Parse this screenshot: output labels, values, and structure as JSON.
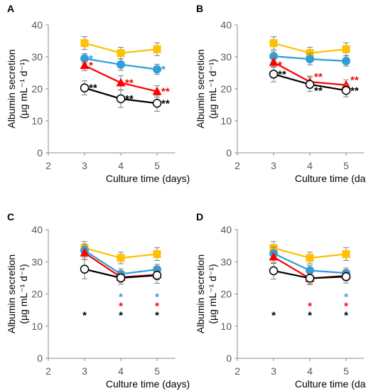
{
  "chart_data": [
    {
      "panel_label": "A",
      "type": "line",
      "xlabel": "Culture time (days)",
      "ylabel_line1": "Albumin secretion",
      "ylabel_line2": "(µg mL⁻¹ d⁻¹)",
      "x": [
        3,
        4,
        5
      ],
      "xlim": [
        2,
        5.5
      ],
      "xticks": [
        "2",
        "3",
        "4",
        "5"
      ],
      "ylim": [
        0,
        40
      ],
      "yticks": [
        "0",
        "10",
        "20",
        "30",
        "40"
      ],
      "grid": false,
      "series": [
        {
          "color": "#FFC000",
          "marker": "square",
          "values": [
            34.3,
            31.2,
            32.4
          ],
          "errors": [
            2.0,
            1.8,
            2.0
          ]
        },
        {
          "color": "#2E9FD9",
          "marker": "circle",
          "values": [
            29.5,
            27.6,
            26.1
          ],
          "errors": [
            1.5,
            1.8,
            1.6
          ]
        },
        {
          "color": "#FF0000",
          "marker": "triangle",
          "values": [
            27.3,
            21.9,
            19.2
          ],
          "errors": [
            1.6,
            2.2,
            1.8
          ]
        },
        {
          "color": "#000000",
          "marker": "open-circle",
          "values": [
            20.3,
            16.9,
            15.5
          ],
          "errors": [
            2.2,
            2.7,
            2.5
          ]
        }
      ],
      "annotations": [
        {
          "text": "*",
          "color": "#2E9FD9",
          "x": 3,
          "y": 29.5,
          "pos": "right"
        },
        {
          "text": "*",
          "color": "#FF0000",
          "x": 3,
          "y": 27.3,
          "pos": "right"
        },
        {
          "text": "**",
          "color": "#000000",
          "x": 3,
          "y": 20.3,
          "pos": "right"
        },
        {
          "text": "**",
          "color": "#FF0000",
          "x": 4,
          "y": 21.9,
          "pos": "right"
        },
        {
          "text": "**",
          "color": "#000000",
          "x": 4,
          "y": 16.9,
          "pos": "right"
        },
        {
          "text": "*",
          "color": "#2E9FD9",
          "x": 5,
          "y": 26.1,
          "pos": "right"
        },
        {
          "text": "**",
          "color": "#FF0000",
          "x": 5,
          "y": 19.2,
          "pos": "right"
        },
        {
          "text": "**",
          "color": "#000000",
          "x": 5,
          "y": 15.5,
          "pos": "right"
        }
      ]
    },
    {
      "panel_label": "B",
      "type": "line",
      "xlabel": "Culture time (days)",
      "ylabel_line1": "Albumin secretion",
      "ylabel_line2": "(µg mL⁻¹ d⁻¹)",
      "x": [
        3,
        4,
        5
      ],
      "xlim": [
        2,
        5.5
      ],
      "xticks": [
        "2",
        "3",
        "4",
        "5"
      ],
      "ylim": [
        0,
        40
      ],
      "yticks": [
        "0",
        "10",
        "20",
        "30",
        "40"
      ],
      "grid": false,
      "series": [
        {
          "color": "#FFC000",
          "marker": "square",
          "values": [
            34.3,
            31.2,
            32.4
          ],
          "errors": [
            2.0,
            1.8,
            2.0
          ]
        },
        {
          "color": "#2E9FD9",
          "marker": "circle",
          "values": [
            30.2,
            29.3,
            28.7
          ],
          "errors": [
            1.6,
            1.8,
            1.6
          ]
        },
        {
          "color": "#FF0000",
          "marker": "triangle",
          "values": [
            28.3,
            22.2,
            21.2
          ],
          "errors": [
            1.6,
            1.8,
            1.6
          ]
        },
        {
          "color": "#000000",
          "marker": "open-circle",
          "values": [
            24.6,
            21.4,
            19.5
          ],
          "errors": [
            2.4,
            2.2,
            2.0
          ]
        }
      ],
      "annotations": [
        {
          "text": "*",
          "color": "#FF0000",
          "x": 3,
          "y": 28.3,
          "pos": "right-low"
        },
        {
          "text": "**",
          "color": "#000000",
          "x": 3,
          "y": 24.6,
          "pos": "right"
        },
        {
          "text": "**",
          "color": "#FF0000",
          "x": 4,
          "y": 23.8,
          "pos": "right"
        },
        {
          "text": "**",
          "color": "#000000",
          "x": 4,
          "y": 19.4,
          "pos": "right"
        },
        {
          "text": "**",
          "color": "#FF0000",
          "x": 5,
          "y": 22.8,
          "pos": "right"
        },
        {
          "text": "**",
          "color": "#000000",
          "x": 5,
          "y": 19.5,
          "pos": "right"
        }
      ]
    },
    {
      "panel_label": "C",
      "type": "line",
      "xlabel": "Culture time (days)",
      "ylabel_line1": "Albumin secretion",
      "ylabel_line2": "(µg mL⁻¹ d⁻¹)",
      "x": [
        3,
        4,
        5
      ],
      "xlim": [
        2,
        5.5
      ],
      "xticks": [
        "2",
        "3",
        "4",
        "5"
      ],
      "ylim": [
        0,
        40
      ],
      "yticks": [
        "0",
        "10",
        "20",
        "30",
        "40"
      ],
      "grid": false,
      "series": [
        {
          "color": "#FFC000",
          "marker": "square",
          "values": [
            34.3,
            31.2,
            32.4
          ],
          "errors": [
            2.0,
            1.8,
            2.0
          ]
        },
        {
          "color": "#2E9FD9",
          "marker": "circle",
          "values": [
            33.5,
            26.2,
            27.6
          ],
          "errors": [
            2.0,
            1.6,
            1.6
          ]
        },
        {
          "color": "#FF0000",
          "marker": "triangle",
          "values": [
            32.8,
            25.2,
            26.0
          ],
          "errors": [
            2.0,
            1.6,
            1.6
          ]
        },
        {
          "color": "#000000",
          "marker": "open-circle",
          "values": [
            27.7,
            25.0,
            25.8
          ],
          "errors": [
            3.0,
            2.0,
            2.5
          ]
        }
      ],
      "annotations": [
        {
          "text": "*",
          "color": "#000000",
          "x": 3,
          "y": 14.5,
          "pos": "below"
        },
        {
          "text": "*",
          "color": "#2E9FD9",
          "x": 4,
          "y": 20.2,
          "pos": "below"
        },
        {
          "text": "*",
          "color": "#FF0000",
          "x": 4,
          "y": 17.4,
          "pos": "below"
        },
        {
          "text": "*",
          "color": "#000000",
          "x": 4,
          "y": 14.5,
          "pos": "below"
        },
        {
          "text": "*",
          "color": "#2E9FD9",
          "x": 5,
          "y": 20.2,
          "pos": "below"
        },
        {
          "text": "*",
          "color": "#FF0000",
          "x": 5,
          "y": 17.4,
          "pos": "below"
        },
        {
          "text": "*",
          "color": "#000000",
          "x": 5,
          "y": 14.5,
          "pos": "below"
        }
      ]
    },
    {
      "panel_label": "D",
      "type": "line",
      "xlabel": "Culture time (days)",
      "ylabel_line1": "Albumin secretion",
      "ylabel_line2": "(µg mL⁻¹ d⁻¹)",
      "x": [
        3,
        4,
        5
      ],
      "xlim": [
        2,
        5.5
      ],
      "xticks": [
        "2",
        "3",
        "4",
        "5"
      ],
      "ylim": [
        0,
        40
      ],
      "yticks": [
        "0",
        "10",
        "20",
        "30",
        "40"
      ],
      "grid": false,
      "series": [
        {
          "color": "#FFC000",
          "marker": "square",
          "values": [
            34.3,
            31.2,
            32.4
          ],
          "errors": [
            2.0,
            1.8,
            2.0
          ]
        },
        {
          "color": "#2E9FD9",
          "marker": "circle",
          "values": [
            32.6,
            27.3,
            26.5
          ],
          "errors": [
            2.0,
            1.6,
            1.6
          ]
        },
        {
          "color": "#FF0000",
          "marker": "triangle",
          "values": [
            31.5,
            24.8,
            25.7
          ],
          "errors": [
            2.0,
            1.6,
            1.6
          ]
        },
        {
          "color": "#000000",
          "marker": "open-circle",
          "values": [
            27.2,
            24.9,
            25.4
          ],
          "errors": [
            2.6,
            2.0,
            2.0
          ]
        }
      ],
      "annotations": [
        {
          "text": "*",
          "color": "#000000",
          "x": 3,
          "y": 14.5,
          "pos": "below"
        },
        {
          "text": "*",
          "color": "#FF0000",
          "x": 4,
          "y": 17.4,
          "pos": "below"
        },
        {
          "text": "*",
          "color": "#000000",
          "x": 4,
          "y": 14.5,
          "pos": "below"
        },
        {
          "text": "*",
          "color": "#2E9FD9",
          "x": 5,
          "y": 20.2,
          "pos": "below"
        },
        {
          "text": "*",
          "color": "#FF0000",
          "x": 5,
          "y": 17.4,
          "pos": "below"
        },
        {
          "text": "*",
          "color": "#000000",
          "x": 5,
          "y": 14.5,
          "pos": "below"
        }
      ]
    }
  ]
}
